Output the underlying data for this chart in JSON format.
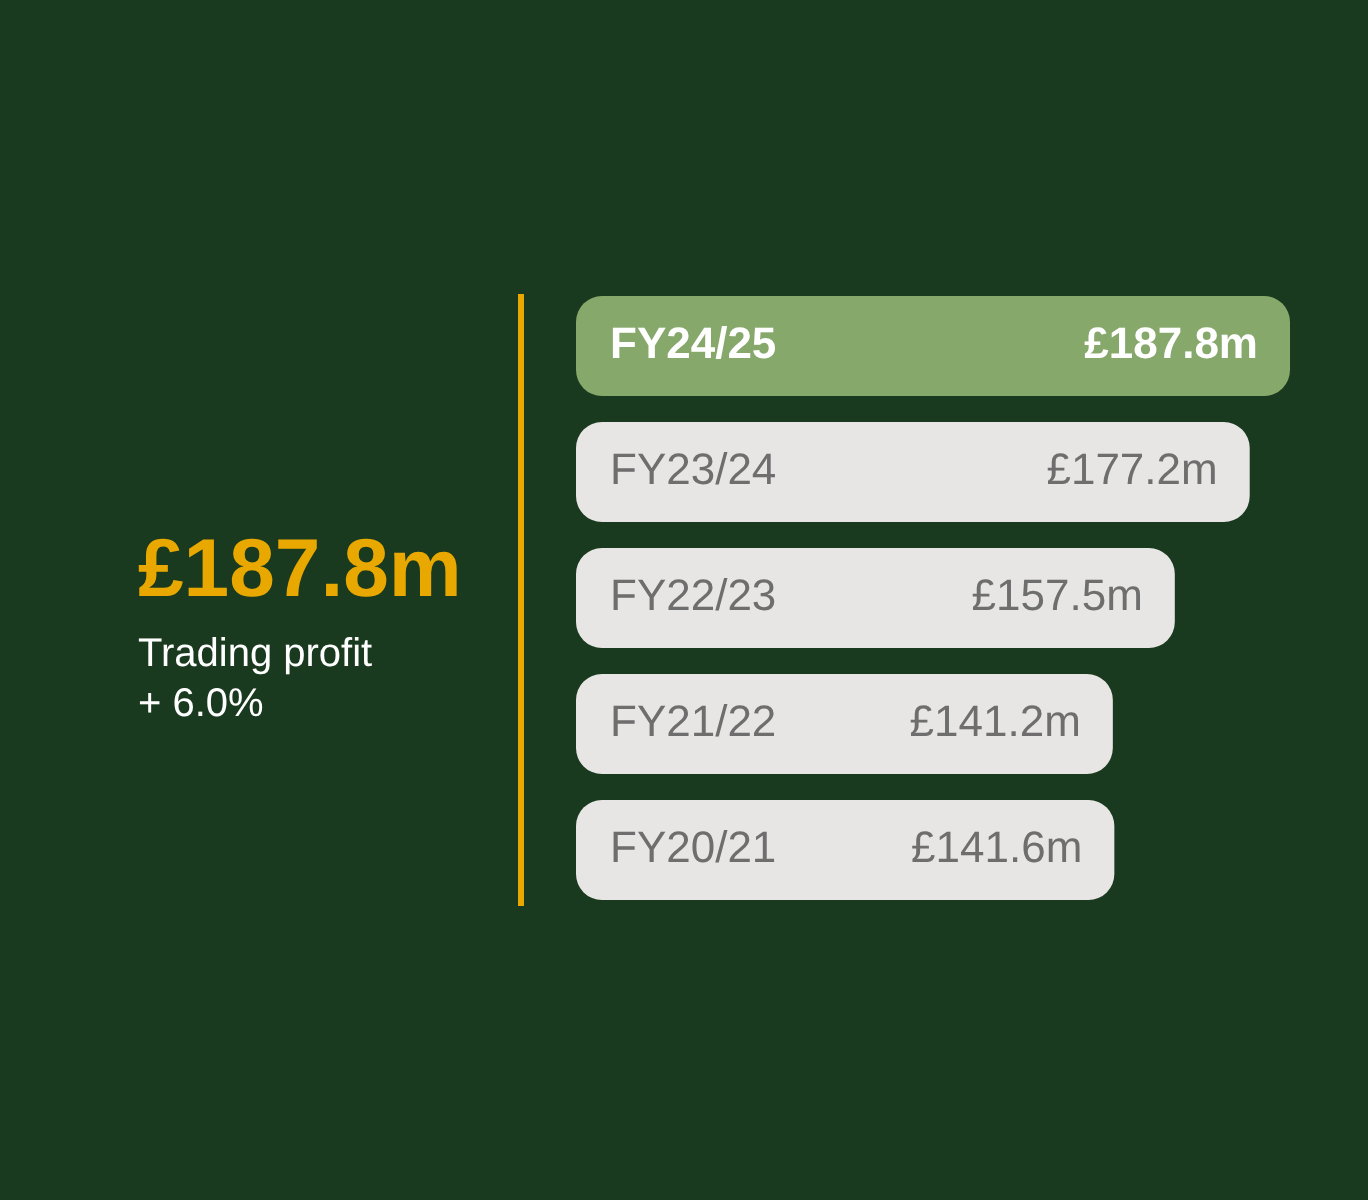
{
  "chart_data": {
    "type": "bar",
    "orientation": "horizontal",
    "categories": [
      "FY24/25",
      "FY23/24",
      "FY22/23",
      "FY21/22",
      "FY20/21"
    ],
    "values": [
      187.8,
      177.2,
      157.5,
      141.2,
      141.6
    ],
    "colors": [
      "#87a86b",
      "#e8e6e4",
      "#e8e6e4",
      "#e8e6e4",
      "#e8e6e4"
    ],
    "value_labels": [
      "£187.8m",
      "£177.2m",
      "£157.5m",
      "£141.2m",
      "£141.6m"
    ],
    "tick_labels": "y",
    "annotations": [
      "£187.8m",
      "Trading profit",
      "+ 6.0%"
    ]
  }
}
